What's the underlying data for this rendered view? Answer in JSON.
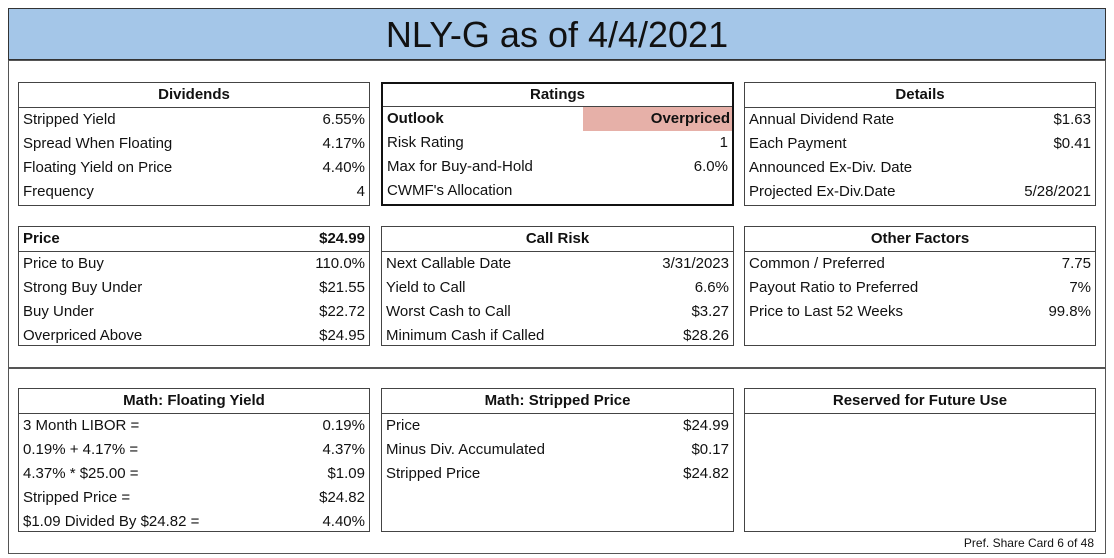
{
  "title": "NLY-G as of 4/4/2021",
  "panels": [
    {
      "header": "Dividends",
      "rows": [
        [
          "Stripped Yield",
          "6.55%"
        ],
        [
          "Spread When Floating",
          "4.17%"
        ],
        [
          "Floating Yield on Price",
          "4.40%"
        ],
        [
          "Frequency",
          "4"
        ]
      ]
    },
    {
      "header": "Ratings",
      "rows": [
        [
          "Outlook",
          "Overpriced"
        ],
        [
          "Risk Rating",
          "1"
        ],
        [
          "Max for Buy-and-Hold",
          "6.0%"
        ],
        [
          "CWMF's Allocation"
        ]
      ]
    },
    {
      "header": "Details",
      "rows": [
        [
          "Annual Dividend Rate",
          "$1.63"
        ],
        [
          "Each Payment",
          "$0.41"
        ],
        [
          "Announced Ex-Div. Date"
        ],
        [
          "Projected Ex-Div.Date",
          "5/28/2021"
        ]
      ]
    },
    {
      "header": "Price",
      "header_value": "$24.99",
      "rows": [
        [
          "Price to Buy",
          "110.0%"
        ],
        [
          "Strong Buy Under",
          "$21.55"
        ],
        [
          "Buy Under",
          "$22.72"
        ],
        [
          "Overpriced Above",
          "$24.95"
        ]
      ]
    },
    {
      "header": "Call Risk",
      "rows": [
        [
          "Next Callable Date",
          "3/31/2023"
        ],
        [
          "Yield to Call",
          "6.6%"
        ],
        [
          "Worst Cash to Call",
          "$3.27"
        ],
        [
          "Minimum Cash if Called",
          "$28.26"
        ]
      ]
    },
    {
      "header": "Other Factors",
      "rows": [
        [
          "Common / Preferred",
          "7.75"
        ],
        [
          "Payout Ratio to Preferred",
          "7%"
        ],
        [
          "Price to Last 52 Weeks",
          "99.8%"
        ]
      ]
    },
    {
      "header": "Math: Floating Yield",
      "rows": [
        [
          "3 Month LIBOR =",
          "0.19%"
        ],
        [
          "0.19% + 4.17% =",
          "4.37%"
        ],
        [
          "4.37% * $25.00 =",
          "$1.09"
        ],
        [
          "Stripped Price =",
          "$24.82"
        ],
        [
          "$1.09 Divided By $24.82 =",
          "4.40%"
        ]
      ]
    },
    {
      "header": "Math: Stripped Price",
      "rows": [
        [
          "Price",
          "$24.99"
        ],
        [
          "Minus Div. Accumulated",
          "$0.17"
        ],
        [
          "Stripped Price",
          "$24.82"
        ]
      ]
    },
    {
      "header": "Reserved for Future Use",
      "rows": []
    }
  ],
  "footer": "Pref. Share Card 6 of 48"
}
